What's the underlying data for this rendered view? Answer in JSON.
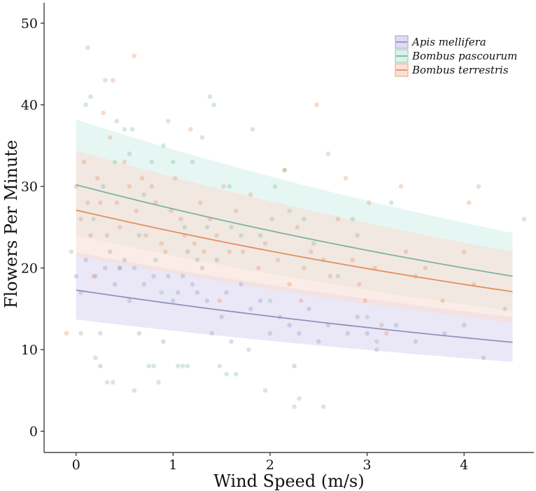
{
  "chart_data": {
    "type": "scatter",
    "title": "",
    "xlabel": "Wind Speed (m/s)",
    "ylabel": "Flowers Per Minute",
    "xlim": [
      -0.33,
      4.72
    ],
    "ylim": [
      -2.6,
      52.5
    ],
    "xticks": [
      0,
      1,
      2,
      3,
      4
    ],
    "yticks": [
      0,
      10,
      20,
      30,
      40,
      50
    ],
    "xtick_labels": [
      "0",
      "1",
      "2",
      "3",
      "4"
    ],
    "ytick_labels": [
      "0",
      "10",
      "20",
      "30",
      "40",
      "50"
    ],
    "grid": false,
    "legend_position": "top-right",
    "series": [
      {
        "name": "Apis mellifera",
        "color": "#8f93bd",
        "fill": "#d8d5f0",
        "fit_x": [
          0,
          4.5
        ],
        "fit": [
          17.3,
          10.9
        ],
        "ci_lower": [
          13.7,
          8.5
        ],
        "ci_upper": [
          21.9,
          14.0
        ],
        "points": [
          [
            0.0,
            19.0
          ],
          [
            0.05,
            17.0
          ],
          [
            0.1,
            21.0
          ],
          [
            0.2,
            19.0
          ],
          [
            0.3,
            20.0
          ],
          [
            0.35,
            22.0
          ],
          [
            0.4,
            18.0
          ],
          [
            0.45,
            20.0
          ],
          [
            0.5,
            21.0
          ],
          [
            0.55,
            16.0
          ],
          [
            0.6,
            20.0
          ],
          [
            0.7,
            18.0
          ],
          [
            0.8,
            19.0
          ],
          [
            0.9,
            11.0
          ],
          [
            0.95,
            19.0
          ],
          [
            1.0,
            16.0
          ],
          [
            1.05,
            17.0
          ],
          [
            1.1,
            19.0
          ],
          [
            1.15,
            22.0
          ],
          [
            1.2,
            18.0
          ],
          [
            1.25,
            17.0
          ],
          [
            1.3,
            20.0
          ],
          [
            1.35,
            16.0
          ],
          [
            1.4,
            12.0
          ],
          [
            1.5,
            14.0
          ],
          [
            1.55,
            17.0
          ],
          [
            1.6,
            11.0
          ],
          [
            1.7,
            18.0
          ],
          [
            1.8,
            15.0
          ],
          [
            1.9,
            16.0
          ],
          [
            2.0,
            12.0
          ],
          [
            2.1,
            14.0
          ],
          [
            2.2,
            13.0
          ],
          [
            2.3,
            12.0
          ],
          [
            2.4,
            15.0
          ],
          [
            2.5,
            11.0
          ],
          [
            2.6,
            13.0
          ],
          [
            2.8,
            12.0
          ],
          [
            2.9,
            14.0
          ],
          [
            3.0,
            12.0
          ],
          [
            3.1,
            10.0
          ],
          [
            3.3,
            13.0
          ],
          [
            3.5,
            11.0
          ],
          [
            3.8,
            12.0
          ],
          [
            4.0,
            13.0
          ],
          [
            4.2,
            9.0
          ],
          [
            0.25,
            8.0
          ],
          [
            0.65,
            12.0
          ],
          [
            1.45,
            21.0
          ],
          [
            2.25,
            8.0
          ]
        ]
      },
      {
        "name": "Bombus pascourum",
        "color": "#7fb49a",
        "fill": "#d2f1ea",
        "fit_x": [
          0,
          4.5
        ],
        "fit": [
          30.2,
          19.0
        ],
        "ci_lower": [
          24.0,
          14.7
        ],
        "ci_upper": [
          38.2,
          24.3
        ],
        "points": [
          [
            -0.05,
            22.0
          ],
          [
            0.05,
            12.0
          ],
          [
            0.1,
            40.0
          ],
          [
            0.12,
            47.0
          ],
          [
            0.15,
            41.0
          ],
          [
            0.2,
            9.0
          ],
          [
            0.25,
            12.0
          ],
          [
            0.28,
            30.0
          ],
          [
            0.3,
            43.0
          ],
          [
            0.32,
            6.0
          ],
          [
            0.38,
            6.0
          ],
          [
            0.4,
            33.0
          ],
          [
            0.42,
            38.0
          ],
          [
            0.45,
            20.0
          ],
          [
            0.5,
            37.0
          ],
          [
            0.55,
            34.0
          ],
          [
            0.58,
            37.0
          ],
          [
            0.6,
            5.0
          ],
          [
            0.65,
            24.0
          ],
          [
            0.7,
            29.0
          ],
          [
            0.75,
            8.0
          ],
          [
            0.78,
            33.0
          ],
          [
            0.8,
            8.0
          ],
          [
            0.82,
            21.0
          ],
          [
            0.85,
            6.0
          ],
          [
            0.9,
            35.0
          ],
          [
            0.95,
            38.0
          ],
          [
            1.0,
            33.0
          ],
          [
            1.05,
            8.0
          ],
          [
            1.1,
            8.0
          ],
          [
            1.15,
            8.0
          ],
          [
            1.2,
            33.0
          ],
          [
            1.25,
            21.0
          ],
          [
            1.3,
            36.0
          ],
          [
            1.35,
            25.0
          ],
          [
            1.38,
            41.0
          ],
          [
            1.42,
            40.0
          ],
          [
            1.48,
            8.0
          ],
          [
            1.55,
            7.0
          ],
          [
            1.6,
            25.0
          ],
          [
            1.65,
            7.0
          ],
          [
            1.7,
            24.0
          ],
          [
            1.78,
            10.0
          ],
          [
            1.82,
            37.0
          ],
          [
            1.9,
            24.0
          ],
          [
            1.95,
            5.0
          ],
          [
            2.0,
            16.0
          ],
          [
            2.05,
            30.0
          ],
          [
            2.15,
            32.0
          ],
          [
            2.2,
            27.0
          ],
          [
            2.25,
            3.0
          ],
          [
            2.3,
            4.0
          ],
          [
            2.35,
            26.0
          ],
          [
            2.45,
            23.0
          ],
          [
            2.55,
            3.0
          ],
          [
            2.6,
            34.0
          ],
          [
            2.7,
            19.0
          ],
          [
            2.85,
            26.0
          ],
          [
            2.9,
            24.0
          ],
          [
            3.0,
            14.0
          ],
          [
            3.1,
            11.0
          ],
          [
            3.25,
            28.0
          ],
          [
            3.5,
            19.0
          ],
          [
            4.15,
            30.0
          ],
          [
            4.42,
            15.0
          ],
          [
            4.62,
            26.0
          ],
          [
            0.18,
            26.0
          ],
          [
            0.88,
            17.0
          ],
          [
            1.12,
            25.0
          ],
          [
            1.58,
            30.0
          ]
        ]
      },
      {
        "name": "Bombus terrestris",
        "color": "#e2905c",
        "fill": "#f9ddd3",
        "fit_x": [
          0,
          4.5
        ],
        "fit": [
          27.1,
          17.1
        ],
        "ci_lower": [
          21.5,
          13.3
        ],
        "ci_upper": [
          34.4,
          22.0
        ],
        "points": [
          [
            -0.1,
            12.0
          ],
          [
            0.0,
            30.0
          ],
          [
            0.05,
            26.0
          ],
          [
            0.08,
            33.0
          ],
          [
            0.12,
            28.0
          ],
          [
            0.18,
            19.0
          ],
          [
            0.22,
            31.0
          ],
          [
            0.25,
            28.0
          ],
          [
            0.28,
            39.0
          ],
          [
            0.32,
            24.0
          ],
          [
            0.35,
            36.0
          ],
          [
            0.38,
            43.0
          ],
          [
            0.42,
            28.0
          ],
          [
            0.45,
            25.0
          ],
          [
            0.5,
            33.0
          ],
          [
            0.55,
            30.0
          ],
          [
            0.6,
            46.0
          ],
          [
            0.62,
            27.0
          ],
          [
            0.68,
            31.0
          ],
          [
            0.72,
            24.0
          ],
          [
            0.78,
            30.0
          ],
          [
            0.82,
            28.0
          ],
          [
            0.88,
            23.0
          ],
          [
            0.92,
            22.0
          ],
          [
            0.98,
            27.0
          ],
          [
            1.02,
            31.0
          ],
          [
            1.08,
            26.0
          ],
          [
            1.12,
            24.0
          ],
          [
            1.18,
            37.0
          ],
          [
            1.22,
            23.0
          ],
          [
            1.28,
            28.0
          ],
          [
            1.32,
            22.0
          ],
          [
            1.38,
            26.0
          ],
          [
            1.45,
            24.0
          ],
          [
            1.52,
            30.0
          ],
          [
            1.58,
            22.0
          ],
          [
            1.65,
            27.0
          ],
          [
            1.72,
            22.0
          ],
          [
            1.8,
            29.0
          ],
          [
            1.88,
            20.0
          ],
          [
            1.95,
            23.0
          ],
          [
            2.02,
            26.0
          ],
          [
            2.08,
            21.0
          ],
          [
            2.15,
            32.0
          ],
          [
            2.2,
            18.0
          ],
          [
            2.28,
            25.0
          ],
          [
            2.35,
            20.0
          ],
          [
            2.42,
            22.0
          ],
          [
            2.48,
            40.0
          ],
          [
            2.55,
            21.0
          ],
          [
            2.62,
            19.0
          ],
          [
            2.7,
            26.0
          ],
          [
            2.78,
            31.0
          ],
          [
            2.85,
            21.0
          ],
          [
            2.92,
            18.0
          ],
          [
            3.02,
            28.0
          ],
          [
            3.08,
            20.0
          ],
          [
            3.15,
            13.0
          ],
          [
            3.2,
            12.0
          ],
          [
            3.35,
            30.0
          ],
          [
            3.4,
            22.0
          ],
          [
            3.6,
            20.0
          ],
          [
            3.78,
            16.0
          ],
          [
            4.0,
            22.0
          ],
          [
            4.1,
            18.0
          ],
          [
            4.05,
            28.0
          ],
          [
            0.15,
            24.0
          ],
          [
            1.48,
            16.0
          ],
          [
            2.32,
            16.0
          ],
          [
            2.98,
            16.0
          ]
        ]
      }
    ]
  }
}
